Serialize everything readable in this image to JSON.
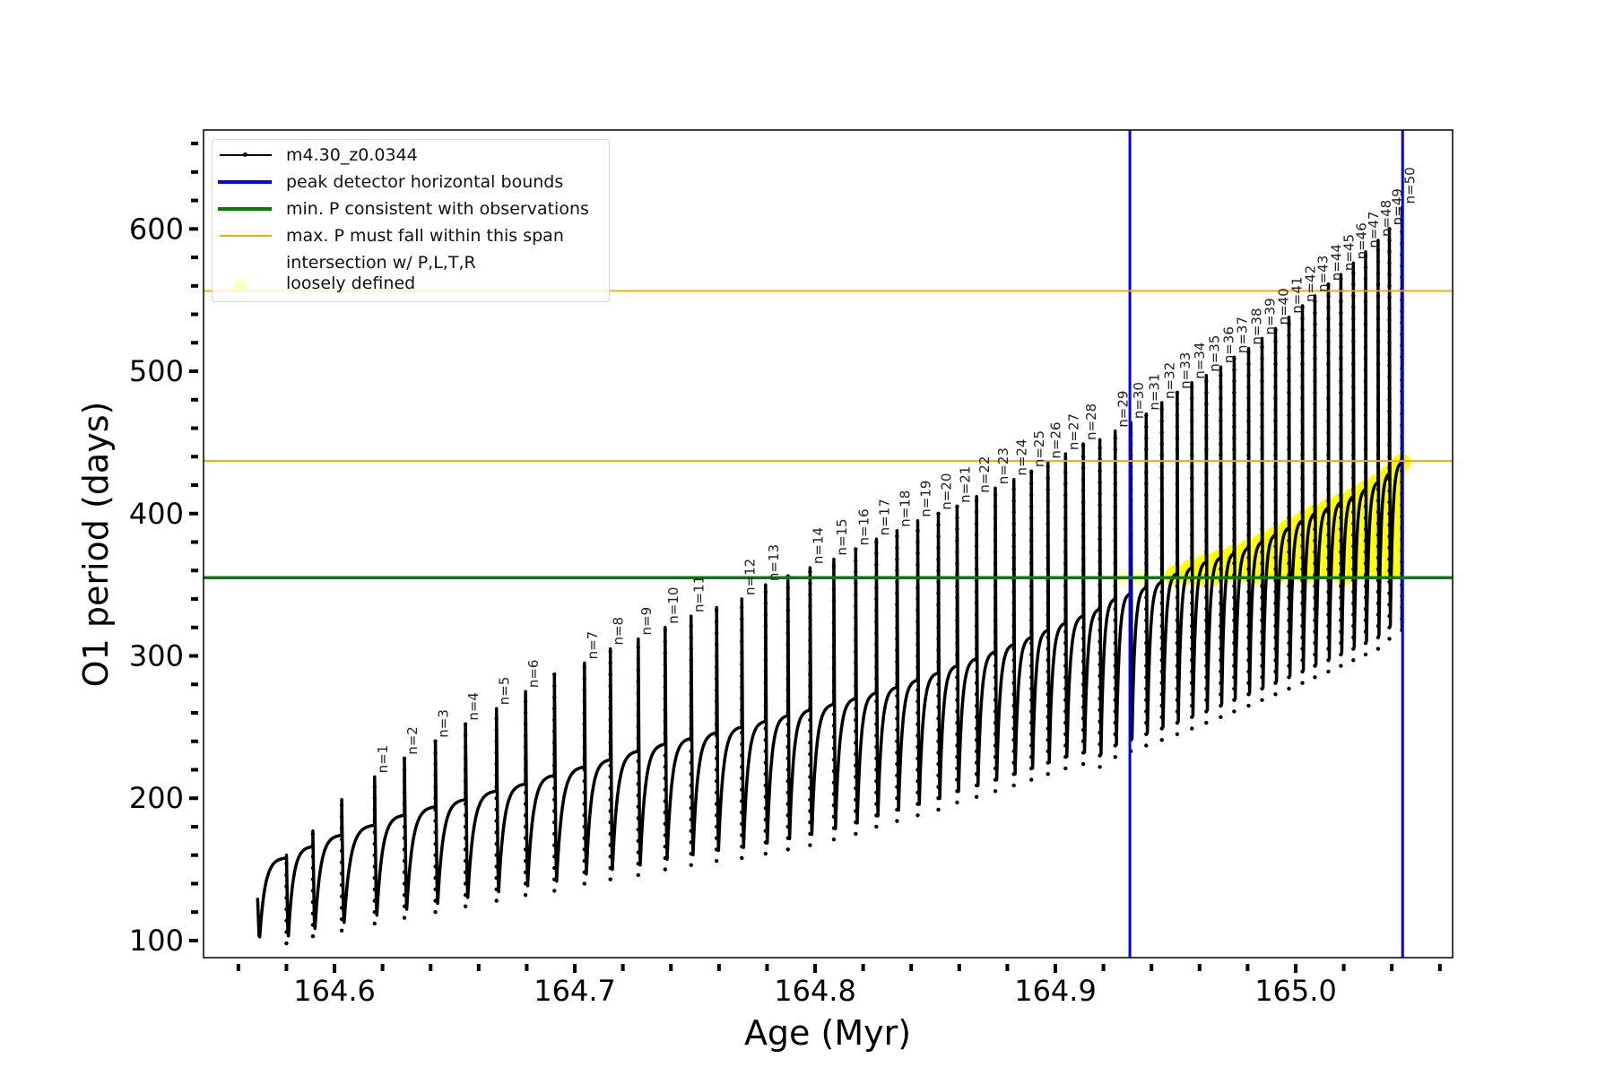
{
  "chart_data": {
    "type": "line",
    "xlabel": "Age (Myr)",
    "ylabel": "O1 period (days)",
    "xlim": [
      164.5455,
      165.0653
    ],
    "ylim": [
      88,
      669.5
    ],
    "xticks_major": [
      164.6,
      164.7,
      164.8,
      164.9,
      165.0
    ],
    "xtick_labels": [
      "164.6",
      "164.7",
      "164.8",
      "164.9",
      "165.0"
    ],
    "xticks_minor_step": 0.02,
    "yticks_major": [
      100,
      200,
      300,
      400,
      500,
      600
    ],
    "ytick_labels": [
      "100",
      "200",
      "300",
      "400",
      "500",
      "600"
    ],
    "yticks_minor_step": 20,
    "grid": false,
    "legend_placement": "upper-left",
    "legend": [
      {
        "label": "m4.30_z0.0344",
        "style": "line-dot",
        "color": "#000000"
      },
      {
        "label": "peak detector horizontal bounds",
        "style": "thick-line",
        "color": "#0000ff"
      },
      {
        "label": "min. P consistent with observations",
        "style": "thick-line",
        "color": "#008000"
      },
      {
        "label": "max. P must fall within this span",
        "style": "thin-line",
        "color": "#ffa500"
      },
      {
        "label": "intersection w/ P,L,T,R\nloosely defined",
        "style": "circle",
        "color": "#ffff00"
      }
    ],
    "vertical_lines": {
      "name": "peak detector horizontal bounds",
      "x": [
        164.931,
        165.0445
      ],
      "color": "#0000ff"
    },
    "min_period_line": {
      "y": 355,
      "color": "#008000"
    },
    "max_period_span": {
      "y": [
        437,
        556.5
      ],
      "color": "#ffa500"
    },
    "intersection_threshold": {
      "min_age": 164.94,
      "min_P": 355,
      "color": "#ffff00"
    },
    "series_start": {
      "age": 164.568,
      "P": 130,
      "min": 98,
      "plateau": 158
    },
    "cycles": [
      {
        "age": 164.58,
        "top": 160,
        "min": 98,
        "plateau": 166,
        "label": ""
      },
      {
        "age": 164.591,
        "top": 177,
        "min": 103,
        "plateau": 174,
        "label": ""
      },
      {
        "age": 164.603,
        "top": 199,
        "min": 107,
        "plateau": 181,
        "label": ""
      },
      {
        "age": 164.6167,
        "top": 215,
        "min": 112,
        "plateau": 188,
        "label": "n=1"
      },
      {
        "age": 164.6291,
        "top": 228,
        "min": 116,
        "plateau": 194,
        "label": "n=2"
      },
      {
        "age": 164.642,
        "top": 240,
        "min": 120,
        "plateau": 199,
        "label": "n=3"
      },
      {
        "age": 164.6545,
        "top": 252,
        "min": 124,
        "plateau": 205,
        "label": "n=4"
      },
      {
        "age": 164.6674,
        "top": 263,
        "min": 128,
        "plateau": 210,
        "label": "n=5"
      },
      {
        "age": 164.6795,
        "top": 275,
        "min": 132,
        "plateau": 216,
        "label": "n=6"
      },
      {
        "age": 164.6915,
        "top": 287,
        "min": 135,
        "plateau": 222,
        "label": ""
      },
      {
        "age": 164.704,
        "top": 295,
        "min": 140,
        "plateau": 227,
        "label": "n=7"
      },
      {
        "age": 164.7148,
        "top": 305,
        "min": 143,
        "plateau": 233,
        "label": "n=8"
      },
      {
        "age": 164.7264,
        "top": 312,
        "min": 146,
        "plateau": 238,
        "label": "n=9"
      },
      {
        "age": 164.7376,
        "top": 320,
        "min": 150,
        "plateau": 242,
        "label": "n=10"
      },
      {
        "age": 164.7484,
        "top": 328,
        "min": 153,
        "plateau": 246,
        "label": "n=11"
      },
      {
        "age": 164.759,
        "top": 334,
        "min": 156,
        "plateau": 250,
        "label": ""
      },
      {
        "age": 164.7695,
        "top": 340,
        "min": 158,
        "plateau": 254,
        "label": "n=12"
      },
      {
        "age": 164.7794,
        "top": 350,
        "min": 161,
        "plateau": 258,
        "label": "n=13"
      },
      {
        "age": 164.7887,
        "top": 356,
        "min": 164,
        "plateau": 262,
        "label": ""
      },
      {
        "age": 164.7979,
        "top": 362,
        "min": 167,
        "plateau": 266,
        "label": "n=14"
      },
      {
        "age": 164.8078,
        "top": 368,
        "min": 171,
        "plateau": 270,
        "label": "n=15"
      },
      {
        "age": 164.8169,
        "top": 375,
        "min": 175,
        "plateau": 274,
        "label": "n=16"
      },
      {
        "age": 164.8255,
        "top": 382,
        "min": 180,
        "plateau": 278,
        "label": "n=17"
      },
      {
        "age": 164.8341,
        "top": 388,
        "min": 184,
        "plateau": 283,
        "label": "n=18"
      },
      {
        "age": 164.8427,
        "top": 395,
        "min": 188,
        "plateau": 288,
        "label": "n=19"
      },
      {
        "age": 164.8513,
        "top": 400,
        "min": 192,
        "plateau": 293,
        "label": "n=20"
      },
      {
        "age": 164.8591,
        "top": 405,
        "min": 197,
        "plateau": 298,
        "label": "n=21"
      },
      {
        "age": 164.8672,
        "top": 412,
        "min": 201,
        "plateau": 303,
        "label": "n=22"
      },
      {
        "age": 164.875,
        "top": 418,
        "min": 205,
        "plateau": 308,
        "label": "n=23"
      },
      {
        "age": 164.8827,
        "top": 424,
        "min": 209,
        "plateau": 313,
        "label": "n=24"
      },
      {
        "age": 164.89,
        "top": 430,
        "min": 213,
        "plateau": 318,
        "label": "n=25"
      },
      {
        "age": 164.8969,
        "top": 436,
        "min": 217,
        "plateau": 323,
        "label": "n=26"
      },
      {
        "age": 164.9042,
        "top": 442,
        "min": 221,
        "plateau": 328,
        "label": "n=27"
      },
      {
        "age": 164.9116,
        "top": 449,
        "min": 224,
        "plateau": 333,
        "label": "n=28"
      },
      {
        "age": 164.9185,
        "top": 452,
        "min": 222,
        "plateau": 340,
        "label": ""
      },
      {
        "age": 164.9249,
        "top": 458,
        "min": 229,
        "plateau": 344,
        "label": "n=29"
      },
      {
        "age": 164.9314,
        "top": 464,
        "min": 233,
        "plateau": 348,
        "label": "n=30"
      },
      {
        "age": 164.9378,
        "top": 470,
        "min": 237,
        "plateau": 352,
        "label": "n=31"
      },
      {
        "age": 164.9443,
        "top": 478,
        "min": 241,
        "plateau": 358,
        "label": "n=32"
      },
      {
        "age": 164.9507,
        "top": 485,
        "min": 245,
        "plateau": 362,
        "label": "n=33"
      },
      {
        "age": 164.9568,
        "top": 492,
        "min": 249,
        "plateau": 366,
        "label": "n=34"
      },
      {
        "age": 164.9628,
        "top": 497,
        "min": 253,
        "plateau": 369,
        "label": "n=35"
      },
      {
        "age": 164.9688,
        "top": 503,
        "min": 257,
        "plateau": 372,
        "label": "n=36"
      },
      {
        "age": 164.9744,
        "top": 510,
        "min": 261,
        "plateau": 376,
        "label": "n=37"
      },
      {
        "age": 164.9804,
        "top": 516,
        "min": 265,
        "plateau": 380,
        "label": "n=38"
      },
      {
        "age": 164.986,
        "top": 523,
        "min": 269,
        "plateau": 385,
        "label": "n=39"
      },
      {
        "age": 164.9916,
        "top": 530,
        "min": 273,
        "plateau": 390,
        "label": "n=40"
      },
      {
        "age": 164.9972,
        "top": 538,
        "min": 277,
        "plateau": 395,
        "label": "n=41"
      },
      {
        "age": 165.0028,
        "top": 546,
        "min": 281,
        "plateau": 400,
        "label": "n=42"
      },
      {
        "age": 165.008,
        "top": 553,
        "min": 285,
        "plateau": 404,
        "label": "n=43"
      },
      {
        "age": 165.0136,
        "top": 561,
        "min": 289,
        "plateau": 408,
        "label": "n=44"
      },
      {
        "age": 165.0188,
        "top": 568,
        "min": 293,
        "plateau": 412,
        "label": "n=45"
      },
      {
        "age": 165.024,
        "top": 576,
        "min": 297,
        "plateau": 417,
        "label": "n=46"
      },
      {
        "age": 165.0291,
        "top": 584,
        "min": 301,
        "plateau": 422,
        "label": "n=47"
      },
      {
        "age": 165.0343,
        "top": 592,
        "min": 305,
        "plateau": 428,
        "label": "n=48"
      },
      {
        "age": 165.039,
        "top": 600,
        "min": 312,
        "plateau": 436,
        "label": "n=49"
      },
      {
        "age": 165.0442,
        "top": 615,
        "min": 318,
        "plateau": 440,
        "label": "n=50"
      }
    ]
  }
}
